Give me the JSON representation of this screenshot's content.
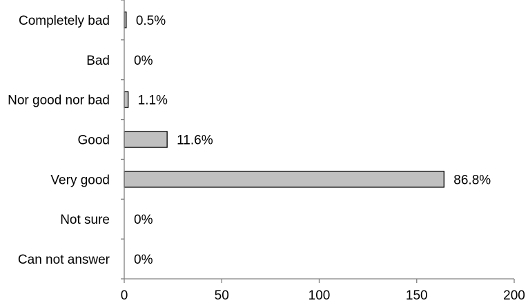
{
  "chart_data": {
    "type": "bar",
    "orientation": "horizontal",
    "categories": [
      "Completely bad",
      "Bad",
      "Nor good nor bad",
      "Good",
      "Very good",
      "Not sure",
      "Can not answer"
    ],
    "values": [
      1,
      0,
      2,
      22,
      164,
      0,
      0
    ],
    "data_labels": [
      "0.5%",
      "0%",
      "1.1%",
      "11.6%",
      "86.8%",
      "0%",
      "0%"
    ],
    "x_ticks": [
      0,
      50,
      100,
      150,
      200
    ],
    "xlim": [
      0,
      200
    ],
    "title": "",
    "xlabel": "",
    "ylabel": "",
    "grid": false,
    "legend": "none",
    "bar_fill": "#c0c0c0",
    "bar_stroke": "#000000",
    "axis_color": "#808080"
  }
}
